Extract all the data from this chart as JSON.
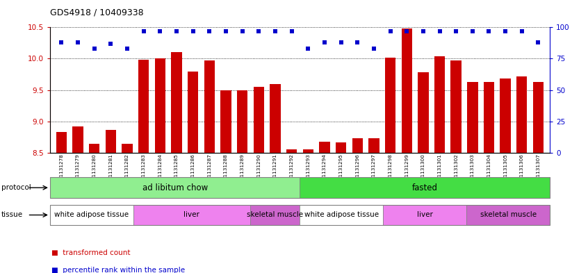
{
  "title": "GDS4918 / 10409338",
  "samples": [
    "GSM1131278",
    "GSM1131279",
    "GSM1131280",
    "GSM1131281",
    "GSM1131282",
    "GSM1131283",
    "GSM1131284",
    "GSM1131285",
    "GSM1131286",
    "GSM1131287",
    "GSM1131288",
    "GSM1131289",
    "GSM1131290",
    "GSM1131291",
    "GSM1131292",
    "GSM1131293",
    "GSM1131294",
    "GSM1131295",
    "GSM1131296",
    "GSM1131297",
    "GSM1131298",
    "GSM1131299",
    "GSM1131300",
    "GSM1131301",
    "GSM1131302",
    "GSM1131303",
    "GSM1131304",
    "GSM1131305",
    "GSM1131306",
    "GSM1131307"
  ],
  "bar_values": [
    8.83,
    8.92,
    8.65,
    8.87,
    8.64,
    9.98,
    10.01,
    10.1,
    9.8,
    9.97,
    9.5,
    9.5,
    9.55,
    9.6,
    8.56,
    8.56,
    8.68,
    8.67,
    8.73,
    8.73,
    10.02,
    10.48,
    9.78,
    10.04,
    9.97,
    9.63,
    9.63,
    9.68,
    9.72,
    9.63
  ],
  "percentile_pct": [
    88,
    88,
    83,
    87,
    83,
    97,
    97,
    97,
    97,
    97,
    97,
    97,
    97,
    97,
    97,
    83,
    88,
    88,
    88,
    83,
    97,
    97,
    97,
    97,
    97,
    97,
    97,
    97,
    97,
    88
  ],
  "bar_color": "#cc0000",
  "dot_color": "#0000cc",
  "ylim_left": [
    8.5,
    10.5
  ],
  "ylim_right": [
    0,
    100
  ],
  "yticks_left": [
    8.5,
    9.0,
    9.5,
    10.0,
    10.5
  ],
  "yticks_right": [
    0,
    25,
    50,
    75,
    100
  ],
  "protocol_groups": [
    {
      "label": "ad libitum chow",
      "start": 0,
      "end": 14,
      "color": "#90ee90"
    },
    {
      "label": "fasted",
      "start": 15,
      "end": 29,
      "color": "#44dd44"
    }
  ],
  "tissue_groups": [
    {
      "label": "white adipose tissue",
      "start": 0,
      "end": 4,
      "color": "#ffffff"
    },
    {
      "label": "liver",
      "start": 5,
      "end": 11,
      "color": "#ee82ee"
    },
    {
      "label": "skeletal muscle",
      "start": 12,
      "end": 14,
      "color": "#cc66cc"
    },
    {
      "label": "white adipose tissue",
      "start": 15,
      "end": 19,
      "color": "#ffffff"
    },
    {
      "label": "liver",
      "start": 20,
      "end": 24,
      "color": "#ee82ee"
    },
    {
      "label": "skeletal muscle",
      "start": 25,
      "end": 29,
      "color": "#cc66cc"
    }
  ],
  "legend_labels": [
    "transformed count",
    "percentile rank within the sample"
  ],
  "legend_colors": [
    "#cc0000",
    "#0000cc"
  ]
}
